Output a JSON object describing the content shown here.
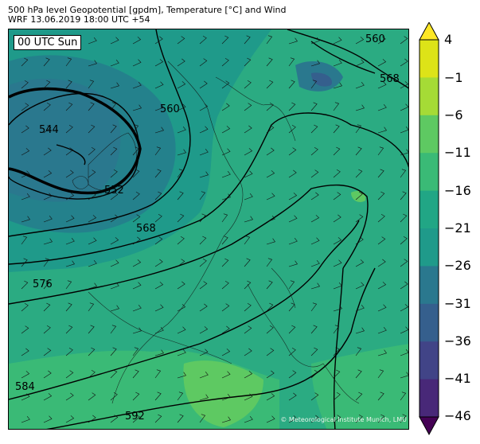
{
  "header": {
    "title_line1": "500 hPa level Geopotential [gpdm], Temperature [°C] and Wind",
    "title_line2": "WRF 13.06.2019 18:00 UTC +54"
  },
  "map": {
    "run_label": "00 UTC Sun",
    "copyright": "© Meteorological Institute Munich, LMU",
    "contour_labels": [
      "544",
      "552",
      "560",
      "568",
      "576",
      "584",
      "592",
      "560",
      "568"
    ],
    "legend_title": "",
    "colors": {
      "t_m46": "#440154",
      "t_m41": "#482475",
      "t_m36": "#414487",
      "t_m31": "#355f8d",
      "t_m26": "#2a788e",
      "t_m21": "#21908d",
      "t_m16": "#22a884",
      "t_m11": "#2fb47c",
      "t_m6": "#5ec962",
      "t_m1": "#a5db36",
      "t_4": "#fde725"
    }
  },
  "colorbar": {
    "ticks": [
      "4",
      "−1",
      "−6",
      "−11",
      "−16",
      "−21",
      "−26",
      "−31",
      "−36",
      "−41",
      "−46"
    ],
    "bands": [
      "#fde725",
      "#dde318",
      "#a5db36",
      "#5ec962",
      "#3aba76",
      "#21a685",
      "#1f9a8a",
      "#2a788e",
      "#355f8d",
      "#414487",
      "#482878",
      "#440154"
    ]
  }
}
